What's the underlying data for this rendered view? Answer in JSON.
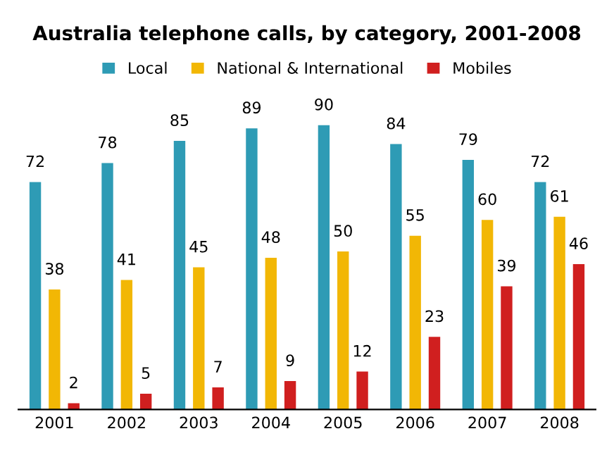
{
  "chart_data": {
    "type": "bar",
    "title": "Australia telephone calls, by category, 2001-2008",
    "categories": [
      "2001",
      "2002",
      "2003",
      "2004",
      "2005",
      "2006",
      "2007",
      "2008"
    ],
    "series": [
      {
        "name": "Local",
        "color": "#2e9bb5",
        "values": [
          72,
          78,
          85,
          89,
          90,
          84,
          79,
          72
        ]
      },
      {
        "name": "National & International",
        "color": "#f2b705",
        "values": [
          38,
          41,
          45,
          48,
          50,
          55,
          60,
          61
        ]
      },
      {
        "name": "Mobiles",
        "color": "#d01f1f",
        "values": [
          2,
          5,
          7,
          9,
          12,
          23,
          39,
          46
        ]
      }
    ],
    "data_labels": true,
    "legend": "top",
    "tick_labels": "x",
    "grid": false
  }
}
